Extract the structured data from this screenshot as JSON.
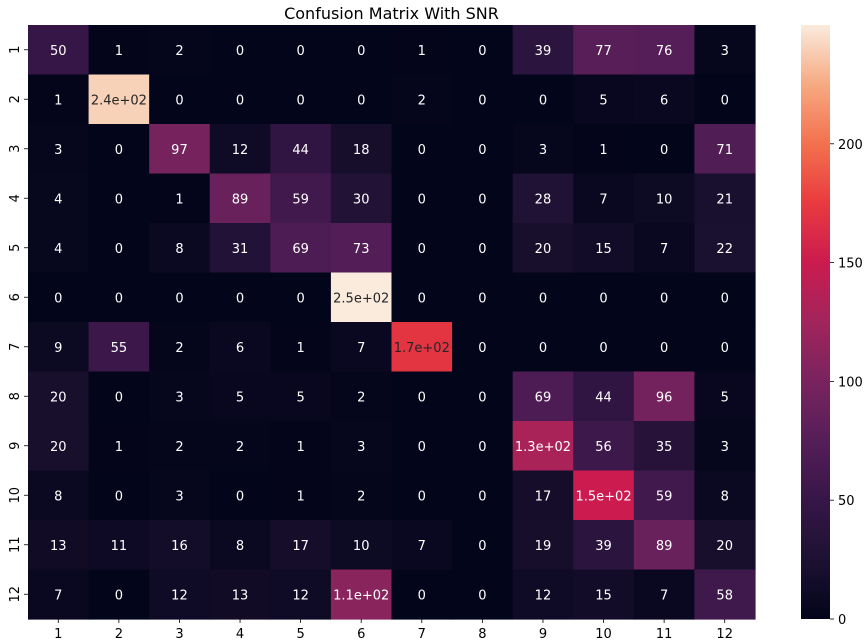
{
  "chart_data": {
    "type": "heatmap",
    "title": "Confusion Matrix With SNR",
    "xlabel": "",
    "ylabel": "",
    "x_categories": [
      "1",
      "2",
      "3",
      "4",
      "5",
      "6",
      "7",
      "8",
      "9",
      "10",
      "11",
      "12"
    ],
    "y_categories": [
      "1",
      "2",
      "3",
      "4",
      "5",
      "6",
      "7",
      "8",
      "9",
      "10",
      "11",
      "12"
    ],
    "values": [
      [
        50,
        1,
        2,
        0,
        0,
        0,
        1,
        0,
        39,
        77,
        76,
        3
      ],
      [
        1,
        240,
        0,
        0,
        0,
        0,
        2,
        0,
        0,
        5,
        6,
        0
      ],
      [
        3,
        0,
        97,
        12,
        44,
        18,
        0,
        0,
        3,
        1,
        0,
        71
      ],
      [
        4,
        0,
        1,
        89,
        59,
        30,
        0,
        0,
        28,
        7,
        10,
        21
      ],
      [
        4,
        0,
        8,
        31,
        69,
        73,
        0,
        0,
        20,
        15,
        7,
        22
      ],
      [
        0,
        0,
        0,
        0,
        0,
        250,
        0,
        0,
        0,
        0,
        0,
        0
      ],
      [
        9,
        55,
        2,
        6,
        1,
        7,
        170,
        0,
        0,
        0,
        0,
        0
      ],
      [
        20,
        0,
        3,
        5,
        5,
        2,
        0,
        0,
        69,
        44,
        96,
        5
      ],
      [
        20,
        1,
        2,
        2,
        1,
        3,
        0,
        0,
        130,
        56,
        35,
        3
      ],
      [
        8,
        0,
        3,
        0,
        1,
        2,
        0,
        0,
        17,
        150,
        59,
        8
      ],
      [
        13,
        11,
        16,
        8,
        17,
        10,
        7,
        0,
        19,
        39,
        89,
        20
      ],
      [
        7,
        0,
        12,
        13,
        12,
        110,
        0,
        0,
        12,
        15,
        7,
        58
      ]
    ],
    "annotations": [
      [
        "50",
        "1",
        "2",
        "0",
        "0",
        "0",
        "1",
        "0",
        "39",
        "77",
        "76",
        "3"
      ],
      [
        "1",
        "2.4e+02",
        "0",
        "0",
        "0",
        "0",
        "2",
        "0",
        "0",
        "5",
        "6",
        "0"
      ],
      [
        "3",
        "0",
        "97",
        "12",
        "44",
        "18",
        "0",
        "0",
        "3",
        "1",
        "0",
        "71"
      ],
      [
        "4",
        "0",
        "1",
        "89",
        "59",
        "30",
        "0",
        "0",
        "28",
        "7",
        "10",
        "21"
      ],
      [
        "4",
        "0",
        "8",
        "31",
        "69",
        "73",
        "0",
        "0",
        "20",
        "15",
        "7",
        "22"
      ],
      [
        "0",
        "0",
        "0",
        "0",
        "0",
        "2.5e+02",
        "0",
        "0",
        "0",
        "0",
        "0",
        "0"
      ],
      [
        "9",
        "55",
        "2",
        "6",
        "1",
        "7",
        "1.7e+02",
        "0",
        "0",
        "0",
        "0",
        "0"
      ],
      [
        "20",
        "0",
        "3",
        "5",
        "5",
        "2",
        "0",
        "0",
        "69",
        "44",
        "96",
        "5"
      ],
      [
        "20",
        "1",
        "2",
        "2",
        "1",
        "3",
        "0",
        "0",
        "1.3e+02",
        "56",
        "35",
        "3"
      ],
      [
        "8",
        "0",
        "3",
        "0",
        "1",
        "2",
        "0",
        "0",
        "17",
        "1.5e+02",
        "59",
        "8"
      ],
      [
        "13",
        "11",
        "16",
        "8",
        "17",
        "10",
        "7",
        "0",
        "19",
        "39",
        "89",
        "20"
      ],
      [
        "7",
        "0",
        "12",
        "13",
        "12",
        "1.1e+02",
        "0",
        "0",
        "12",
        "15",
        "7",
        "58"
      ]
    ],
    "colorbar": {
      "colormap": "rocket",
      "range": [
        0,
        250
      ],
      "ticks": [
        0,
        50,
        100,
        150,
        200
      ],
      "tick_labels": [
        "0",
        "50",
        "100",
        "150",
        "200"
      ]
    },
    "grid": false,
    "legend": "right"
  }
}
